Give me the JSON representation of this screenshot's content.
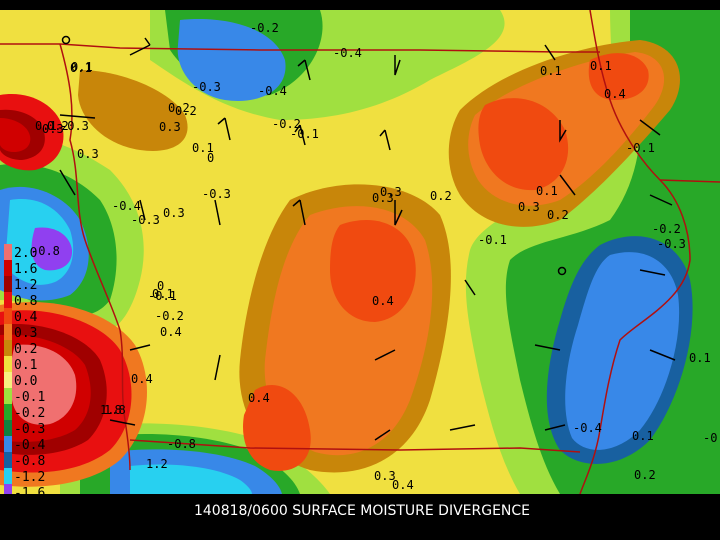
{
  "caption": "140818/0600 SURFACE MOISTURE DIVERGENCE",
  "legend": {
    "labels": [
      "2.0",
      "1.6",
      "1.2",
      "0.8",
      "0.4",
      "0.3",
      "0.2",
      "0.1",
      "0.0",
      "-0.1",
      "-0.2",
      "-0.3",
      "-0.4",
      "-0.8",
      "-1.2",
      "-1.6"
    ],
    "colors": [
      "#f07070",
      "#d00000",
      "#a00000",
      "#e81010",
      "#f04a10",
      "#f07820",
      "#c8860a",
      "#f0e040",
      "#f8f080",
      "#a0e040",
      "#28a828",
      "#108040",
      "#3888e8",
      "#1860a0",
      "#28d0f0",
      "#9040f0"
    ]
  },
  "contour_labels": [
    {
      "text": "-0.2"
    },
    {
      "text": "0.1"
    },
    {
      "text": "0.2"
    },
    {
      "text": "-0.4"
    },
    {
      "text": "-0.3"
    },
    {
      "text": "-0.2"
    },
    {
      "text": "0.1"
    },
    {
      "text": "0.3"
    },
    {
      "text": "0.2"
    },
    {
      "text": "0.1"
    },
    {
      "text": "0.1"
    },
    {
      "text": "0.4"
    },
    {
      "text": "0.3"
    },
    {
      "text": "-0.3"
    },
    {
      "text": "0"
    },
    {
      "text": "-0.4"
    },
    {
      "text": "-0.1"
    },
    {
      "text": "0.2"
    },
    {
      "text": "0.3"
    },
    {
      "text": "0.1"
    },
    {
      "text": "-0.8"
    },
    {
      "text": "1.8"
    },
    {
      "text": "0.3"
    },
    {
      "text": "0.1"
    },
    {
      "text": "-0.3"
    },
    {
      "text": "-0.2"
    },
    {
      "text": "0.4"
    },
    {
      "text": "-0.4"
    },
    {
      "text": "-0.3"
    },
    {
      "text": "0.2"
    },
    {
      "text": "0.1"
    },
    {
      "text": "0.4"
    },
    {
      "text": "0.2"
    },
    {
      "text": "0.3"
    },
    {
      "text": "0.4"
    },
    {
      "text": "-0.1"
    },
    {
      "text": "0.3"
    },
    {
      "text": "0.4"
    },
    {
      "text": "-0.8"
    },
    {
      "text": "1.2"
    },
    {
      "text": "1.8"
    },
    {
      "text": "0.4"
    },
    {
      "text": "0.3"
    },
    {
      "text": "-0.1"
    },
    {
      "text": "-0.2"
    },
    {
      "text": "-0.3"
    },
    {
      "text": "0.1"
    },
    {
      "text": "-0.4"
    },
    {
      "text": "0.1"
    },
    {
      "text": "0.2"
    },
    {
      "text": "-0.2"
    },
    {
      "text": "0.1"
    },
    {
      "text": "0"
    },
    {
      "text": "-0.1"
    },
    {
      "text": "0.3"
    }
  ]
}
